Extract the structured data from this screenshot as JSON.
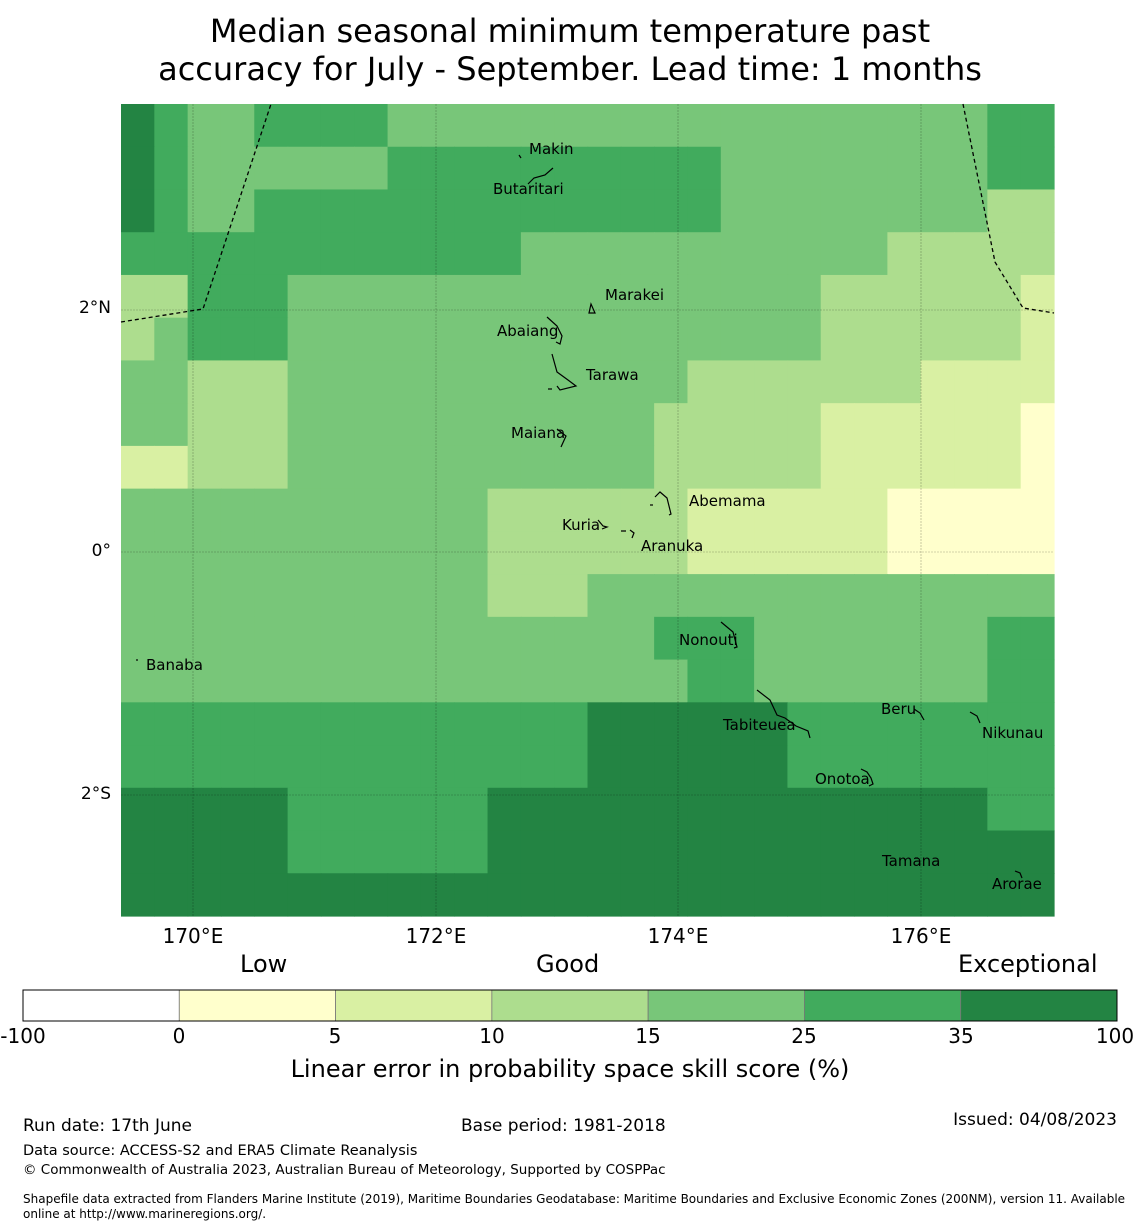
{
  "title_line1": "Median seasonal minimum temperature past",
  "title_line2": "accuracy for July - September. Lead time: 1 months",
  "map": {
    "lon_ticks": [
      "170°E",
      "172°E",
      "174°E",
      "176°E"
    ],
    "lat_ticks": [
      "2°N",
      "0°",
      "2°S"
    ],
    "islands": [
      {
        "name": "Makin",
        "lon": 172.95,
        "lat": 3.33
      },
      {
        "name": "Butaritari",
        "lon": 172.78,
        "lat": 3.0
      },
      {
        "name": "Marakei",
        "lon": 173.3,
        "lat": 2.12
      },
      {
        "name": "Abaiang",
        "lon": 172.8,
        "lat": 1.82
      },
      {
        "name": "Tarawa",
        "lon": 173.0,
        "lat": 1.45
      },
      {
        "name": "Maiana",
        "lon": 173.0,
        "lat": 0.96
      },
      {
        "name": "Abemama",
        "lon": 173.85,
        "lat": 0.4
      },
      {
        "name": "Kuria",
        "lon": 173.4,
        "lat": 0.22
      },
      {
        "name": "Aranuka",
        "lon": 173.6,
        "lat": 0.16
      },
      {
        "name": "Nonouti",
        "lon": 174.35,
        "lat": -0.65
      },
      {
        "name": "Banaba",
        "lon": 169.54,
        "lat": -0.86
      },
      {
        "name": "Tabiteuea",
        "lon": 174.85,
        "lat": -1.35
      },
      {
        "name": "Beru",
        "lon": 176.0,
        "lat": -1.33
      },
      {
        "name": "Nikunau",
        "lon": 176.45,
        "lat": -1.36
      },
      {
        "name": "Onotoa",
        "lon": 175.55,
        "lat": -1.8
      },
      {
        "name": "Tamana",
        "lon": 175.97,
        "lat": -2.49
      },
      {
        "name": "Arorae",
        "lon": 176.82,
        "lat": -2.64
      }
    ],
    "skill_grid_rows_north_to_south": [
      [
        100,
        35,
        25,
        25,
        35,
        35,
        35,
        35,
        25,
        25,
        25,
        25,
        25,
        25,
        25,
        25,
        25,
        25,
        25,
        25,
        25,
        25,
        25,
        25,
        25,
        25,
        35,
        35
      ],
      [
        100,
        35,
        25,
        25,
        25,
        25,
        25,
        25,
        35,
        35,
        35,
        35,
        35,
        35,
        35,
        35,
        35,
        35,
        25,
        25,
        25,
        25,
        25,
        25,
        25,
        25,
        35,
        35
      ],
      [
        100,
        35,
        25,
        25,
        35,
        35,
        35,
        35,
        35,
        35,
        35,
        35,
        35,
        35,
        35,
        35,
        35,
        35,
        25,
        25,
        25,
        25,
        25,
        25,
        25,
        25,
        15,
        15
      ],
      [
        35,
        35,
        35,
        35,
        35,
        35,
        35,
        35,
        35,
        35,
        35,
        35,
        25,
        25,
        25,
        25,
        25,
        25,
        25,
        25,
        25,
        25,
        25,
        15,
        15,
        15,
        15,
        15
      ],
      [
        15,
        15,
        35,
        35,
        35,
        25,
        25,
        25,
        25,
        25,
        25,
        25,
        25,
        25,
        25,
        25,
        25,
        25,
        25,
        25,
        25,
        15,
        15,
        15,
        15,
        15,
        15,
        10
      ],
      [
        15,
        25,
        35,
        35,
        35,
        25,
        25,
        25,
        25,
        25,
        25,
        25,
        25,
        25,
        25,
        25,
        25,
        25,
        25,
        25,
        25,
        15,
        15,
        15,
        15,
        15,
        15,
        10
      ],
      [
        25,
        25,
        15,
        15,
        15,
        25,
        25,
        25,
        25,
        25,
        25,
        25,
        25,
        25,
        25,
        25,
        25,
        15,
        15,
        15,
        15,
        15,
        15,
        15,
        10,
        10,
        10,
        10
      ],
      [
        25,
        25,
        15,
        15,
        15,
        25,
        25,
        25,
        25,
        25,
        25,
        25,
        25,
        25,
        25,
        25,
        15,
        15,
        15,
        15,
        15,
        10,
        10,
        10,
        10,
        10,
        10,
        5
      ],
      [
        10,
        10,
        15,
        15,
        15,
        25,
        25,
        25,
        25,
        25,
        25,
        25,
        25,
        25,
        25,
        25,
        15,
        15,
        15,
        15,
        15,
        10,
        10,
        10,
        10,
        10,
        10,
        5
      ],
      [
        25,
        25,
        25,
        25,
        25,
        25,
        25,
        25,
        25,
        25,
        25,
        15,
        15,
        15,
        15,
        15,
        15,
        10,
        10,
        10,
        10,
        10,
        10,
        5,
        5,
        5,
        5,
        5
      ],
      [
        25,
        25,
        25,
        25,
        25,
        25,
        25,
        25,
        25,
        25,
        25,
        15,
        15,
        15,
        15,
        15,
        15,
        10,
        10,
        10,
        10,
        10,
        10,
        5,
        5,
        5,
        5,
        5
      ],
      [
        25,
        25,
        25,
        25,
        25,
        25,
        25,
        25,
        25,
        25,
        25,
        15,
        15,
        15,
        25,
        25,
        25,
        25,
        25,
        25,
        25,
        25,
        25,
        25,
        25,
        25,
        25,
        25
      ],
      [
        25,
        25,
        25,
        25,
        25,
        25,
        25,
        25,
        25,
        25,
        25,
        25,
        25,
        25,
        25,
        25,
        35,
        35,
        35,
        25,
        25,
        25,
        25,
        25,
        25,
        25,
        35,
        35
      ],
      [
        25,
        25,
        25,
        25,
        25,
        25,
        25,
        25,
        25,
        25,
        25,
        25,
        25,
        25,
        25,
        25,
        25,
        35,
        35,
        25,
        25,
        25,
        25,
        25,
        25,
        25,
        35,
        35
      ],
      [
        35,
        35,
        35,
        35,
        35,
        35,
        35,
        35,
        35,
        35,
        35,
        35,
        35,
        35,
        100,
        100,
        100,
        100,
        100,
        100,
        35,
        35,
        35,
        35,
        35,
        35,
        35,
        35
      ],
      [
        35,
        35,
        35,
        35,
        35,
        35,
        35,
        35,
        35,
        35,
        35,
        35,
        35,
        35,
        100,
        100,
        100,
        100,
        100,
        100,
        35,
        35,
        35,
        35,
        35,
        35,
        35,
        35
      ],
      [
        100,
        100,
        100,
        100,
        100,
        35,
        35,
        35,
        35,
        35,
        35,
        100,
        100,
        100,
        100,
        100,
        100,
        100,
        100,
        100,
        100,
        100,
        100,
        100,
        100,
        100,
        35,
        35
      ],
      [
        100,
        100,
        100,
        100,
        100,
        35,
        35,
        35,
        35,
        35,
        35,
        100,
        100,
        100,
        100,
        100,
        100,
        100,
        100,
        100,
        100,
        100,
        100,
        100,
        100,
        100,
        100,
        100
      ],
      [
        100,
        100,
        100,
        100,
        100,
        100,
        100,
        100,
        100,
        100,
        100,
        100,
        100,
        100,
        100,
        100,
        100,
        100,
        100,
        100,
        100,
        100,
        100,
        100,
        100,
        100,
        100,
        100
      ]
    ]
  },
  "colorbar": {
    "categories": [
      "Low",
      "Good",
      "Exceptional"
    ],
    "ticks": [
      "-100",
      "0",
      "5",
      "10",
      "15",
      "25",
      "35",
      "100"
    ],
    "colors": [
      "#ffffff",
      "#ffffcc",
      "#d9f0a3",
      "#addd8e",
      "#78c679",
      "#41ab5d",
      "#238443"
    ],
    "label": "Linear error in probability space skill score (%)"
  },
  "footer": {
    "run_date": "Run date: 17th June",
    "base_period": "Base period: 1981-2018",
    "issued": "Issued: 04/08/2023",
    "data_source": "Data source: ACCESS-S2 and ERA5 Climate Reanalysis",
    "copyright": "© Commonwealth of Australia 2023, Australian Bureau of Meteorology, Supported by COSPPac",
    "shapefile_line1": "Shapefile data extracted from Flanders Marine Institute (2019), Maritime Boundaries Geodatabase: Maritime Boundaries and Exclusive Economic Zones (200NM), version 11. Available",
    "shapefile_line2": "online at http://www.marineregions.org/."
  }
}
